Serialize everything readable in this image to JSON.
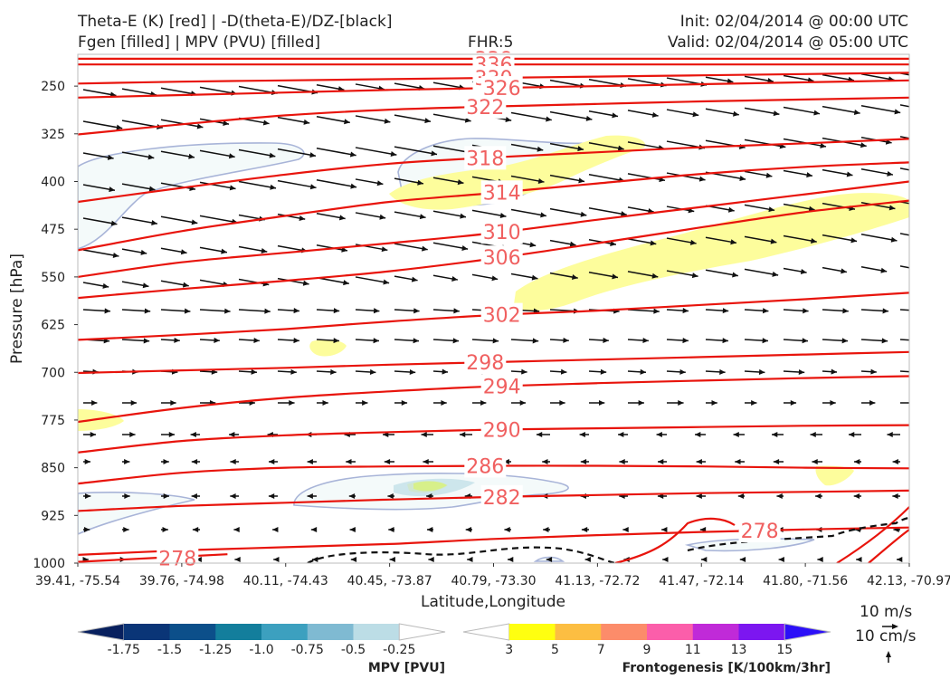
{
  "header": {
    "title_line1": "Theta-E (K) [red] | -D(theta-E)/DZ-[black]",
    "title_line2": "Fgen [filled] | MPV (PVU) [filled]",
    "fhr": "FHR:5",
    "init": "Init: 02/04/2014 @ 00:00 UTC",
    "valid": "Valid: 02/04/2014 @ 05:00 UTC"
  },
  "chart_data": {
    "type": "cross-section",
    "xlabel": "Latitude,Longitude",
    "ylabel": "Pressure [hPa]",
    "x_tick_labels": [
      "39.41, -75.54",
      "39.76, -74.98",
      "40.11, -74.43",
      "40.45, -73.87",
      "40.79, -73.30",
      "41.13, -72.72",
      "41.47, -72.14",
      "41.80, -71.56",
      "42.13, -70.97"
    ],
    "y_ticks": [
      250,
      325,
      400,
      475,
      550,
      625,
      700,
      775,
      850,
      925,
      1000
    ],
    "ylim": [
      1000,
      200
    ],
    "theta_e_color": "#e8140c",
    "theta_e_contours": [
      {
        "value": 338,
        "label": "338",
        "pressure": [
          207,
          207,
          207,
          207,
          207,
          207,
          207,
          207,
          207
        ],
        "label_x": 0.5
      },
      {
        "value": 336,
        "label": "336",
        "pressure": [
          216,
          216,
          216,
          216,
          216,
          216,
          216,
          216,
          216
        ],
        "label_x": 0.5
      },
      {
        "value": 330,
        "label": "330",
        "pressure": [
          246,
          243,
          241,
          239,
          237,
          235,
          233,
          231,
          229
        ],
        "label_x": 0.5
      },
      {
        "value": 326,
        "label": "326",
        "pressure": [
          268,
          264,
          260,
          256,
          253,
          250,
          247,
          244,
          241
        ],
        "label_x": 0.51
      },
      {
        "value": 322,
        "label": "322",
        "pressure": [
          326,
          310,
          296,
          287,
          282,
          278,
          274,
          271,
          268
        ],
        "label_x": 0.49
      },
      {
        "value": 318,
        "label": "318",
        "pressure": [
          432,
          410,
          389,
          372,
          362,
          354,
          346,
          340,
          333
        ],
        "label_x": 0.49
      },
      {
        "value": 314,
        "label": "314",
        "pressure": [
          508,
          478,
          454,
          432,
          418,
          403,
          388,
          377,
          370
        ],
        "label_x": 0.51
      },
      {
        "value": 310,
        "label": "310",
        "pressure": [
          550,
          527,
          512,
          497,
          481,
          460,
          440,
          420,
          400
        ],
        "label_x": 0.51
      },
      {
        "value": 306,
        "label": "306",
        "pressure": [
          583,
          569,
          556,
          541,
          521,
          497,
          472,
          448,
          430
        ],
        "label_x": 0.51
      },
      {
        "value": 302,
        "label": "302",
        "pressure": [
          649,
          641,
          632,
          620,
          610,
          603,
          594,
          585,
          575
        ],
        "label_x": 0.51
      },
      {
        "value": 298,
        "label": "298",
        "pressure": [
          701,
          697,
          693,
          688,
          684,
          680,
          676,
          672,
          668
        ],
        "label_x": 0.49
      },
      {
        "value": 294,
        "label": "294",
        "pressure": [
          778,
          756,
          740,
          730,
          722,
          717,
          713,
          709,
          706
        ],
        "label_x": 0.51
      },
      {
        "value": 290,
        "label": "290",
        "pressure": [
          826,
          808,
          799,
          794,
          790,
          788,
          786,
          784,
          783
        ],
        "label_x": 0.51
      },
      {
        "value": 286,
        "label": "286",
        "pressure": [
          875,
          858,
          850,
          848,
          847,
          847,
          848,
          850,
          851
        ],
        "label_x": 0.49
      },
      {
        "value": 282,
        "label": "282",
        "pressure": [
          918,
          910,
          905,
          900,
          896,
          893,
          890,
          888,
          886
        ],
        "label_x": 0.51
      },
      {
        "value": 278,
        "label": "278",
        "pressure": [
          987,
          980,
          975,
          970,
          962,
          956,
          951,
          947,
          944
        ],
        "label_x": 0.82
      }
    ],
    "low_theta_e_contour": {
      "label": "278",
      "pressure": [
        998,
        992,
        986
      ]
    },
    "mpv_colorbar": {
      "title": "MPV [PVU]",
      "levels": [
        "-1.75",
        "-1.5",
        "-1.25",
        "-1.0",
        "-0.75",
        "-0.5",
        "-0.25"
      ],
      "colors": [
        "#08205e",
        "#0a3577",
        "#0c4f8a",
        "#137e9c",
        "#3ca0bf",
        "#7fbad2",
        "#bcdde6",
        "#ffffff"
      ]
    },
    "fgen_colorbar": {
      "title": "Frontogenesis [K/100km/3hr]",
      "levels": [
        "3",
        "5",
        "7",
        "9",
        "11",
        "13",
        "15"
      ],
      "colors": [
        "#ffffff",
        "#ffff10",
        "#fcbe42",
        "#fc8c6a",
        "#fb5eaa",
        "#c02ad8",
        "#7c16f0",
        "#2c10f8"
      ]
    },
    "fgen_color": "#fdfd9c",
    "mpv_fill": "#f4fafa",
    "mpv_outline": "#a8b4d8",
    "wind_scale": {
      "horizontal": "10 m/s",
      "vertical": "10 cm/s"
    }
  }
}
